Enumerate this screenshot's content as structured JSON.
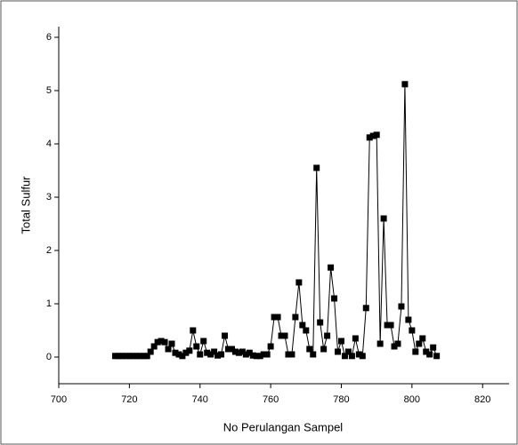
{
  "chart_data": {
    "type": "line-scatter",
    "xlabel": "No Perulangan Sampel",
    "ylabel": "Total Sulfur",
    "color": "#000000",
    "x": [
      716,
      717,
      718,
      719,
      720,
      721,
      722,
      723,
      724,
      725,
      726,
      727,
      728,
      729,
      730,
      731,
      732,
      733,
      734,
      735,
      736,
      737,
      738,
      739,
      740,
      741,
      742,
      743,
      744,
      745,
      746,
      747,
      748,
      749,
      750,
      751,
      752,
      753,
      754,
      755,
      756,
      757,
      758,
      759,
      760,
      761,
      762,
      763,
      764,
      765,
      766,
      767,
      768,
      769,
      770,
      771,
      772,
      773,
      774,
      775,
      776,
      777,
      778,
      779,
      780,
      781,
      782,
      783,
      784,
      785,
      786,
      787,
      788,
      789,
      790,
      791,
      792,
      793,
      794,
      795,
      796,
      797,
      798,
      799,
      800,
      801,
      802,
      803,
      804,
      805,
      806,
      807
    ],
    "values": [
      0.02,
      0.02,
      0.02,
      0.02,
      0.02,
      0.02,
      0.02,
      0.02,
      0.02,
      0.02,
      0.1,
      0.2,
      0.28,
      0.3,
      0.28,
      0.15,
      0.25,
      0.08,
      0.05,
      0.02,
      0.08,
      0.12,
      0.5,
      0.2,
      0.05,
      0.3,
      0.08,
      0.05,
      0.1,
      0.03,
      0.05,
      0.4,
      0.15,
      0.15,
      0.1,
      0.08,
      0.1,
      0.05,
      0.08,
      0.03,
      0.02,
      0.02,
      0.05,
      0.05,
      0.2,
      0.75,
      0.75,
      0.4,
      0.4,
      0.05,
      0.05,
      0.75,
      1.4,
      0.6,
      0.5,
      0.15,
      0.05,
      3.55,
      0.65,
      0.15,
      0.4,
      1.68,
      1.1,
      0.1,
      0.3,
      0.02,
      0.1,
      0.02,
      0.35,
      0.05,
      0.02,
      0.92,
      4.12,
      4.15,
      4.17,
      0.25,
      2.6,
      0.6,
      0.6,
      0.2,
      0.25,
      0.95,
      5.12,
      0.7,
      0.5,
      0.1,
      0.25,
      0.35,
      0.1,
      0.05,
      0.18,
      0.02
    ],
    "xlim": [
      700,
      827.5
    ],
    "xticks": [
      700,
      720,
      740,
      760,
      780,
      800,
      820
    ],
    "ylim": [
      -0.5,
      6.2
    ],
    "yticks": [
      0,
      1,
      2,
      3,
      4,
      5,
      6
    ]
  }
}
